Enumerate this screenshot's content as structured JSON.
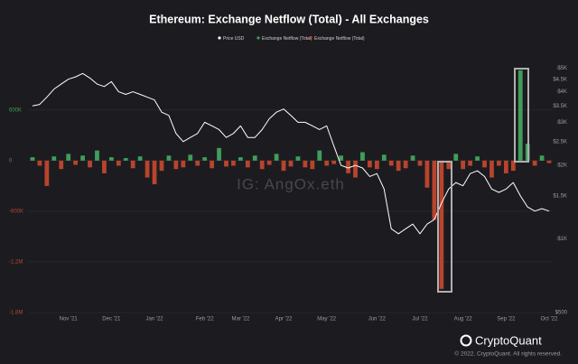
{
  "chart_data": {
    "type": "bar_line",
    "title": "Ethereum: Exchange Netflow (Total) - All Exchanges",
    "watermark": "IG: AngOx.eth",
    "brand": "CryptoQuant",
    "copyright": "© 2022. CryptoQuant. All rights reserved.",
    "categories": [
      null,
      null,
      null,
      null,
      null,
      "Nov '21",
      null,
      null,
      null,
      null,
      null,
      "Dec '21",
      null,
      null,
      null,
      null,
      null,
      "Jan '22",
      null,
      null,
      null,
      null,
      null,
      null,
      "Feb '22",
      null,
      null,
      null,
      null,
      "Mar '22",
      null,
      null,
      null,
      null,
      null,
      "Apr '22",
      null,
      null,
      null,
      null,
      null,
      "May '22",
      null,
      null,
      null,
      null,
      null,
      null,
      "Jun '22",
      null,
      null,
      null,
      null,
      null,
      "Jul '22",
      null,
      null,
      null,
      null,
      null,
      "Aug '22",
      null,
      null,
      null,
      null,
      null,
      "Sep '22",
      null,
      null,
      null,
      null,
      null,
      "Oct '22"
    ],
    "series": [
      {
        "name": "Price USD",
        "color": "#ffffff",
        "type": "line",
        "axis": "y2",
        "values": [
          3500,
          3550,
          3800,
          4100,
          4300,
          4500,
          4600,
          4750,
          4550,
          4300,
          4200,
          4400,
          4000,
          3900,
          4000,
          3900,
          3800,
          3700,
          3300,
          3200,
          2700,
          2500,
          2600,
          2700,
          3000,
          2900,
          2800,
          2600,
          2700,
          2900,
          2600,
          2600,
          2800,
          3100,
          3300,
          3400,
          3200,
          3000,
          3000,
          2900,
          2800,
          2900,
          2400,
          2000,
          1950,
          2000,
          1950,
          1800,
          1850,
          1600,
          1100,
          1050,
          1100,
          1150,
          1050,
          1150,
          1200,
          1400,
          1600,
          1700,
          1650,
          1850,
          1900,
          1800,
          1600,
          1550,
          1600,
          1700,
          1500,
          1350,
          1300,
          1330,
          1300
        ]
      },
      {
        "name": "Exchange Netflow (Total)",
        "color": "#3f9e5a",
        "type": "bar",
        "values": [
          40000,
          null,
          null,
          50000,
          null,
          80000,
          null,
          60000,
          null,
          120000,
          null,
          40000,
          null,
          30000,
          null,
          50000,
          null,
          null,
          null,
          60000,
          null,
          null,
          70000,
          null,
          40000,
          null,
          150000,
          null,
          null,
          40000,
          null,
          60000,
          null,
          null,
          80000,
          null,
          null,
          50000,
          null,
          null,
          120000,
          null,
          null,
          60000,
          null,
          null,
          100000,
          null,
          null,
          70000,
          null,
          null,
          null,
          60000,
          null,
          null,
          null,
          null,
          null,
          80000,
          null,
          null,
          50000,
          null,
          null,
          null,
          null,
          null,
          1070000,
          200000,
          null,
          60000,
          null
        ]
      },
      {
        "name": "Exchange Netflow (Total)",
        "color": "#b8442e",
        "type": "bar",
        "values": [
          null,
          -60000,
          -300000,
          null,
          -100000,
          null,
          -50000,
          null,
          -80000,
          null,
          -150000,
          null,
          -60000,
          null,
          -90000,
          null,
          -200000,
          -280000,
          -120000,
          null,
          -100000,
          -80000,
          null,
          -60000,
          null,
          -90000,
          null,
          -70000,
          -60000,
          null,
          -80000,
          null,
          -100000,
          -50000,
          null,
          -120000,
          -70000,
          null,
          -80000,
          -100000,
          null,
          -60000,
          -40000,
          null,
          -150000,
          -200000,
          null,
          -80000,
          -100000,
          null,
          -60000,
          -120000,
          -90000,
          null,
          -60000,
          -320000,
          -700000,
          -1520000,
          -100000,
          null,
          -100000,
          -60000,
          null,
          -80000,
          -200000,
          -60000,
          -150000,
          -120000,
          null,
          null,
          -60000,
          null,
          -30000
        ]
      }
    ],
    "ylim": [
      -1800000,
      1240000
    ],
    "yticks": [
      {
        "value": 600000,
        "label": "600K"
      },
      0,
      {
        "value": -600000,
        "label": "-600K"
      },
      {
        "value": -1200000,
        "label": "-1.2M"
      },
      {
        "value": -1800000,
        "label": "-1.8M"
      }
    ],
    "y2lim": [
      500,
      5600
    ],
    "y2scale": "log",
    "y2ticks": [
      {
        "value": 5000,
        "label": "$5K"
      },
      {
        "value": 4500,
        "label": "$4.5K"
      },
      {
        "value": 4000,
        "label": "$4K"
      },
      {
        "value": 3500,
        "label": "$3.5K"
      },
      {
        "value": 3000,
        "label": "$3K"
      },
      {
        "value": 2500,
        "label": "$2.5K"
      },
      {
        "value": 2000,
        "label": "$2K"
      },
      {
        "value": 1500,
        "label": "$1.5K"
      },
      {
        "value": 1000,
        "label": "$1K"
      },
      {
        "value": 500,
        "label": "$500"
      }
    ],
    "grid": true,
    "legend": "top"
  }
}
